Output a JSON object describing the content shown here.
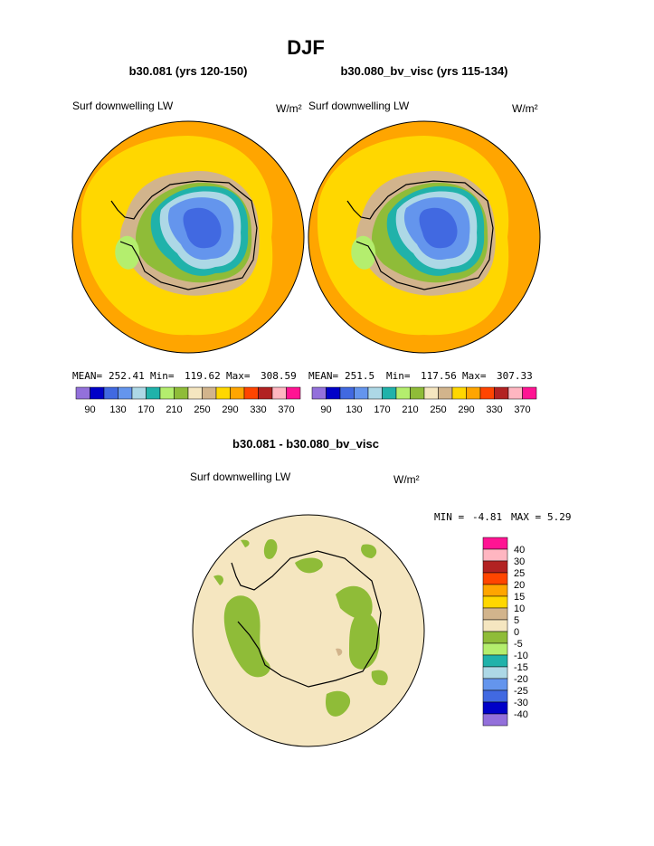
{
  "title": "DJF",
  "panels": [
    {
      "title": "b30.081 (yrs 120-150)",
      "variable": "Surf downwelling LW",
      "units": "W/m²",
      "stats": [
        {
          "label": "MEAN=",
          "value": 252.41
        },
        {
          "label": "Min=",
          "value": 119.62
        },
        {
          "label": "Max=",
          "value": 308.59
        }
      ]
    },
    {
      "title": "b30.080_bv_visc (yrs 115-134)",
      "variable": "Surf downwelling LW",
      "units": "W/m²",
      "stats": [
        {
          "label": "MEAN=",
          "value": 251.5
        },
        {
          "label": "Min=",
          "value": 117.56
        },
        {
          "label": "Max=",
          "value": 307.33
        }
      ]
    }
  ],
  "colorbar": {
    "labels": [
      90,
      130,
      170,
      210,
      250,
      290,
      330,
      370
    ],
    "colors": [
      "#9370db",
      "#0000c8",
      "#4169e1",
      "#6495ed",
      "#add8e6",
      "#20b2aa",
      "#b4ee6e",
      "#8fbc38",
      "#f5e6c0",
      "#d2b48c",
      "#ffd700",
      "#ffa500",
      "#ff4500",
      "#b22222",
      "#ffb6c1",
      "#ff1493"
    ]
  },
  "difference": {
    "title": "b30.081 - b30.080_bv_visc",
    "variable": "Surf downwelling LW",
    "units": "W/m²",
    "stats": [
      {
        "label": "MIN =",
        "value": -4.81
      },
      {
        "label": "MAX =",
        "value": 5.29
      }
    ],
    "colorbar": {
      "labels": [
        40,
        30,
        25,
        20,
        15,
        10,
        5,
        0,
        -5,
        -10,
        -15,
        -20,
        -25,
        -30,
        -40
      ],
      "colors": [
        "#ff1493",
        "#ffb6c1",
        "#b22222",
        "#ff4500",
        "#ffa500",
        "#ffd700",
        "#d2b48c",
        "#f5e6c0",
        "#8fbc38",
        "#b4ee6e",
        "#20b2aa",
        "#add8e6",
        "#6495ed",
        "#4169e1",
        "#0000c8",
        "#9370db"
      ]
    }
  }
}
